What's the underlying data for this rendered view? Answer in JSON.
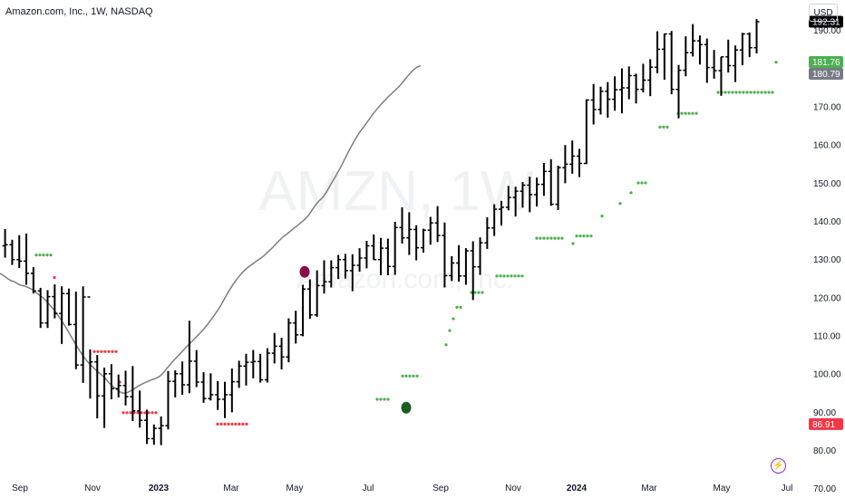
{
  "header": {
    "title": "Amazon.com, Inc., 1W, NASDAQ",
    "currency_button": "USD"
  },
  "watermark": {
    "symbol": "AMZN, 1W",
    "company": "Amazon.com, Inc."
  },
  "flash_icon": "lightning-icon",
  "colors": {
    "bar": "#000000",
    "ma_line": "#7f7f7f",
    "dot_green": "#4caf50",
    "dot_red": "#f23645",
    "marker_top": "#880e4f",
    "marker_bottom": "#1b5e20",
    "last_price_bg": "#000000",
    "green_label_bg": "#4caf50",
    "gray_label_bg": "#787b86",
    "red_label_bg": "#f23645"
  },
  "chart_data": {
    "type": "ohlc",
    "ylim": [
      68.5,
      198
    ],
    "x_ticks": [
      "Sep",
      "Nov",
      "2023",
      "Mar",
      "May",
      "Jul",
      "Sep",
      "Nov",
      "2024",
      "Mar",
      "May",
      "Jul"
    ],
    "y_ticks": [
      "70.00",
      "80.00",
      "90.00",
      "100.00",
      "110.00",
      "120.00",
      "130.00",
      "140.00",
      "150.00",
      "160.00",
      "170.00",
      "180.00",
      "190.00"
    ],
    "price_labels": [
      {
        "text": "192.31",
        "value": 192.31,
        "kind": "last"
      },
      {
        "text": "181.76",
        "value": 181.76,
        "kind": "green"
      },
      {
        "text": "180.79",
        "value": 180.79,
        "kind": "gray"
      },
      {
        "text": "86.91",
        "value": 86.91,
        "kind": "red"
      }
    ],
    "series": [
      {
        "name": "",
        "kind": "ohlc",
        "values": [
          [
            133.6,
            138.0,
            130.5,
            133.9
          ],
          [
            133.9,
            135.2,
            128.6,
            130.0
          ],
          [
            130.0,
            136.4,
            127.8,
            129.6
          ],
          [
            129.6,
            136.8,
            123.4,
            126.4
          ],
          [
            126.4,
            128.0,
            121.1,
            121.8
          ],
          [
            121.8,
            122.6,
            112.1,
            113.4
          ],
          [
            113.4,
            122.0,
            112.1,
            120.3
          ],
          [
            120.3,
            123.5,
            114.6,
            115.9
          ],
          [
            115.9,
            123.0,
            107.9,
            121.1
          ],
          [
            121.1,
            122.4,
            112.7,
            113.0
          ],
          [
            113.0,
            121.6,
            101.3,
            102.4
          ],
          [
            102.4,
            123.0,
            97.7,
            120.2
          ],
          [
            120.2,
            106.5,
            93.6,
            103.2
          ],
          [
            103.2,
            105.0,
            88.4,
            94.3
          ],
          [
            94.3,
            101.7,
            85.9,
            100.1
          ],
          [
            100.1,
            102.6,
            93.4,
            96.2
          ],
          [
            96.2,
            99.9,
            93.9,
            97.0
          ],
          [
            97.0,
            100.9,
            91.8,
            94.1
          ],
          [
            94.1,
            102.1,
            87.7,
            90.4
          ],
          [
            90.4,
            95.7,
            86.0,
            87.9
          ],
          [
            87.9,
            90.7,
            81.7,
            83.1
          ],
          [
            83.1,
            86.8,
            81.5,
            85.8
          ],
          [
            85.8,
            88.9,
            81.4,
            86.5
          ],
          [
            86.5,
            100.8,
            85.5,
            98.1
          ],
          [
            98.1,
            101.0,
            93.9,
            100.1
          ],
          [
            100.1,
            103.3,
            94.6,
            97.2
          ],
          [
            97.2,
            114.0,
            95.0,
            103.4
          ],
          [
            103.4,
            106.3,
            96.6,
            97.9
          ],
          [
            97.9,
            100.5,
            92.5,
            93.6
          ],
          [
            93.6,
            100.2,
            93.1,
            94.6
          ],
          [
            94.6,
            98.2,
            90.6,
            93.4
          ],
          [
            93.4,
            98.0,
            88.5,
            94.6
          ],
          [
            94.6,
            101.5,
            90.0,
            98.0
          ],
          [
            98.0,
            103.5,
            96.4,
            102.1
          ],
          [
            102.1,
            105.3,
            97.0,
            103.1
          ],
          [
            103.1,
            106.3,
            98.9,
            103.3
          ],
          [
            103.3,
            105.3,
            97.8,
            98.5
          ],
          [
            98.5,
            106.8,
            97.8,
            105.5
          ],
          [
            105.5,
            110.8,
            102.8,
            107.3
          ],
          [
            107.3,
            109.5,
            101.2,
            104.5
          ],
          [
            104.5,
            114.6,
            103.1,
            113.4
          ],
          [
            113.4,
            116.6,
            108.0,
            110.3
          ],
          [
            110.3,
            123.4,
            109.9,
            122.3
          ],
          [
            122.3,
            124.8,
            114.5,
            115.5
          ],
          [
            115.5,
            127.2,
            115.0,
            123.2
          ],
          [
            123.2,
            129.8,
            121.1,
            124.2
          ],
          [
            124.2,
            129.8,
            122.7,
            127.9
          ],
          [
            127.9,
            131.2,
            124.9,
            130.0
          ],
          [
            130.0,
            131.5,
            125.0,
            127.1
          ],
          [
            127.1,
            131.4,
            121.7,
            128.5
          ],
          [
            128.5,
            133.0,
            126.8,
            130.4
          ],
          [
            130.4,
            134.9,
            127.7,
            133.6
          ],
          [
            133.6,
            136.6,
            129.9,
            130.0
          ],
          [
            130.0,
            135.7,
            125.9,
            133.0
          ],
          [
            133.0,
            135.5,
            125.9,
            128.2
          ],
          [
            128.2,
            139.9,
            126.0,
            138.4
          ],
          [
            138.4,
            143.7,
            134.2,
            135.7
          ],
          [
            135.7,
            142.4,
            131.2,
            137.9
          ],
          [
            137.9,
            139.0,
            129.8,
            133.1
          ],
          [
            133.1,
            138.1,
            131.8,
            137.7
          ],
          [
            137.7,
            141.2,
            133.9,
            139.6
          ],
          [
            139.6,
            144.0,
            134.6,
            136.3
          ],
          [
            136.3,
            139.7,
            122.7,
            125.8
          ],
          [
            125.8,
            130.9,
            124.4,
            129.1
          ],
          [
            129.1,
            133.8,
            124.2,
            125.7
          ],
          [
            125.7,
            133.0,
            123.4,
            132.3
          ],
          [
            132.3,
            134.8,
            119.4,
            128.1
          ],
          [
            128.1,
            135.8,
            126.0,
            134.4
          ],
          [
            134.4,
            141.1,
            132.8,
            138.3
          ],
          [
            138.3,
            144.5,
            136.2,
            143.2
          ],
          [
            143.2,
            145.4,
            138.9,
            143.7
          ],
          [
            143.7,
            149.3,
            142.9,
            146.3
          ],
          [
            146.3,
            149.1,
            141.3,
            147.9
          ],
          [
            147.9,
            150.3,
            143.6,
            149.5
          ],
          [
            149.5,
            151.7,
            142.4,
            147.0
          ],
          [
            147.0,
            151.5,
            143.9,
            149.7
          ],
          [
            149.7,
            155.3,
            146.7,
            153.1
          ],
          [
            153.1,
            156.3,
            144.1,
            144.5
          ],
          [
            144.5,
            154.6,
            143.0,
            154.1
          ],
          [
            154.1,
            160.0,
            150.0,
            155.0
          ],
          [
            155.0,
            161.2,
            152.5,
            157.1
          ],
          [
            157.1,
            159.0,
            151.6,
            155.2
          ],
          [
            155.2,
            172.0,
            155.0,
            171.8
          ],
          [
            171.8,
            176.0,
            165.4,
            169.3
          ],
          [
            169.3,
            175.3,
            168.0,
            174.1
          ],
          [
            174.1,
            176.5,
            167.2,
            172.0
          ],
          [
            172.0,
            178.0,
            169.0,
            174.5
          ],
          [
            174.5,
            180.1,
            168.3,
            175.0
          ],
          [
            175.0,
            180.6,
            172.0,
            178.2
          ],
          [
            178.2,
            178.7,
            170.9,
            174.6
          ],
          [
            174.6,
            181.3,
            173.8,
            177.0
          ],
          [
            177.0,
            182.5,
            172.8,
            180.4
          ],
          [
            180.4,
            189.8,
            178.8,
            185.1
          ],
          [
            185.1,
            189.2,
            177.1,
            189.1
          ],
          [
            189.1,
            189.9,
            173.3,
            174.6
          ],
          [
            174.6,
            181.0,
            167.0,
            179.6
          ],
          [
            179.6,
            188.5,
            178.0,
            184.2
          ],
          [
            184.2,
            191.7,
            183.2,
            187.3
          ],
          [
            187.3,
            188.7,
            181.1,
            186.3
          ],
          [
            186.3,
            187.9,
            176.3,
            180.3
          ],
          [
            180.3,
            184.9,
            177.4,
            179.5
          ],
          [
            179.5,
            183.1,
            172.9,
            183.1
          ],
          [
            183.1,
            187.6,
            179.0,
            180.8
          ],
          [
            180.8,
            186.1,
            176.5,
            184.9
          ],
          [
            184.9,
            189.4,
            180.9,
            189.1
          ],
          [
            189.1,
            189.5,
            183.0,
            185.5
          ],
          [
            185.5,
            193.0,
            184.0,
            192.3
          ]
        ]
      },
      {
        "name": "",
        "kind": "line",
        "values": [
          126.4,
          125.8,
          125.1,
          124.5,
          124.2,
          123.6,
          123.2,
          123.0,
          122.6,
          122.1,
          121.3,
          120.6,
          119.9,
          118.9,
          117.8,
          116.7,
          115.4,
          114.0,
          112.5,
          110.9,
          109.2,
          107.6,
          106.1,
          104.7,
          103.4,
          102.4,
          101.5,
          100.6,
          99.8,
          98.9,
          97.8,
          96.9,
          96.1,
          95.4,
          95.0,
          95.1,
          95.6,
          96.2,
          96.8,
          97.3,
          97.8,
          98.2,
          98.6,
          98.9,
          99.4,
          100.3,
          101.5,
          102.6,
          103.7,
          104.7,
          105.7,
          106.7,
          107.7,
          108.6,
          109.6,
          110.6,
          111.6,
          112.7,
          114.0,
          115.3,
          116.7,
          118.2,
          119.9,
          121.6,
          123.1,
          124.5,
          125.7,
          126.8,
          127.7,
          128.4,
          129.1,
          129.8,
          130.4,
          131.2,
          132.1,
          133.0,
          134.0,
          135.0,
          135.9,
          136.6,
          137.4,
          138.2,
          138.9,
          139.7,
          140.5,
          141.5,
          142.9,
          144.3,
          145.4,
          146.3,
          147.7,
          149.3,
          151.0,
          152.6,
          154.3,
          156.2,
          158.1,
          159.9,
          161.6,
          163.1,
          164.4,
          165.7,
          167.0,
          168.3,
          169.5,
          170.6,
          171.6,
          172.6,
          173.5,
          174.4,
          175.3,
          176.4,
          177.6,
          178.7,
          179.7,
          180.4,
          180.8
        ]
      }
    ],
    "dots_green": [
      [
        10,
        131.2
      ],
      [
        11,
        131.2
      ],
      [
        12,
        131.2
      ],
      [
        13,
        131.2
      ],
      [
        14,
        131.2
      ],
      [
        104,
        93.4
      ],
      [
        105,
        93.4
      ],
      [
        106,
        93.4
      ],
      [
        107,
        93.4
      ],
      [
        111,
        99.5
      ],
      [
        112,
        99.5
      ],
      [
        113,
        99.5
      ],
      [
        114,
        99.5
      ],
      [
        115,
        99.5
      ],
      [
        123,
        107.7
      ],
      [
        124,
        111.4
      ],
      [
        125,
        114.5
      ],
      [
        126,
        117.5
      ],
      [
        127,
        117.5
      ],
      [
        130,
        121.4
      ],
      [
        131,
        121.4
      ],
      [
        132,
        121.4
      ],
      [
        133,
        121.4
      ],
      [
        137,
        125.7
      ],
      [
        138,
        125.7
      ],
      [
        139,
        125.7
      ],
      [
        140,
        125.7
      ],
      [
        141,
        125.7
      ],
      [
        142,
        125.7
      ],
      [
        143,
        125.7
      ],
      [
        144,
        125.7
      ],
      [
        148,
        135.6
      ],
      [
        149,
        135.6
      ],
      [
        150,
        135.6
      ],
      [
        151,
        135.6
      ],
      [
        152,
        135.6
      ],
      [
        153,
        135.6
      ],
      [
        154,
        135.6
      ],
      [
        155,
        135.6
      ],
      [
        158,
        134.2
      ],
      [
        159,
        136.2
      ],
      [
        160,
        136.2
      ],
      [
        161,
        136.2
      ],
      [
        162,
        136.2
      ],
      [
        163,
        136.2
      ],
      [
        166,
        141.4
      ],
      [
        171,
        144.7
      ],
      [
        174,
        147.5
      ],
      [
        176,
        150.1
      ],
      [
        177,
        150.1
      ],
      [
        178,
        150.1
      ],
      [
        182,
        164.7
      ],
      [
        183,
        164.7
      ],
      [
        184,
        164.7
      ],
      [
        187,
        168.3
      ],
      [
        188,
        168.3
      ],
      [
        189,
        168.3
      ],
      [
        190,
        168.3
      ],
      [
        191,
        168.3
      ],
      [
        192,
        168.3
      ],
      [
        198,
        173.8
      ],
      [
        199,
        173.8
      ],
      [
        200,
        173.8
      ],
      [
        201,
        173.8
      ],
      [
        202,
        173.8
      ],
      [
        203,
        173.8
      ],
      [
        204,
        173.8
      ],
      [
        205,
        173.8
      ],
      [
        206,
        173.8
      ],
      [
        207,
        173.8
      ],
      [
        208,
        173.8
      ],
      [
        209,
        173.8
      ],
      [
        210,
        173.8
      ],
      [
        211,
        173.8
      ],
      [
        212,
        173.8
      ],
      [
        213,
        173.8
      ],
      [
        214,
        181.7
      ]
    ],
    "dots_red": [
      [
        15,
        125.3
      ],
      [
        26,
        105.9
      ],
      [
        27,
        105.9
      ],
      [
        28,
        105.9
      ],
      [
        29,
        105.9
      ],
      [
        30,
        105.9
      ],
      [
        31,
        105.9
      ],
      [
        32,
        105.9
      ],
      [
        33,
        97.9
      ],
      [
        34,
        89.9
      ],
      [
        35,
        89.9
      ],
      [
        36,
        89.9
      ],
      [
        37,
        89.9
      ],
      [
        38,
        89.9
      ],
      [
        39,
        89.9
      ],
      [
        40,
        89.9
      ],
      [
        41,
        89.9
      ],
      [
        42,
        89.9
      ],
      [
        43,
        89.9
      ],
      [
        60,
        86.9
      ],
      [
        61,
        86.9
      ],
      [
        62,
        86.9
      ],
      [
        63,
        86.9
      ],
      [
        64,
        86.9
      ],
      [
        65,
        86.9
      ],
      [
        66,
        86.9
      ],
      [
        67,
        86.9
      ],
      [
        68,
        86.9
      ]
    ],
    "markers": [
      {
        "kind": "top",
        "index": 84,
        "value": 126.8
      },
      {
        "kind": "bottom",
        "index": 112,
        "value": 91.2
      }
    ]
  }
}
